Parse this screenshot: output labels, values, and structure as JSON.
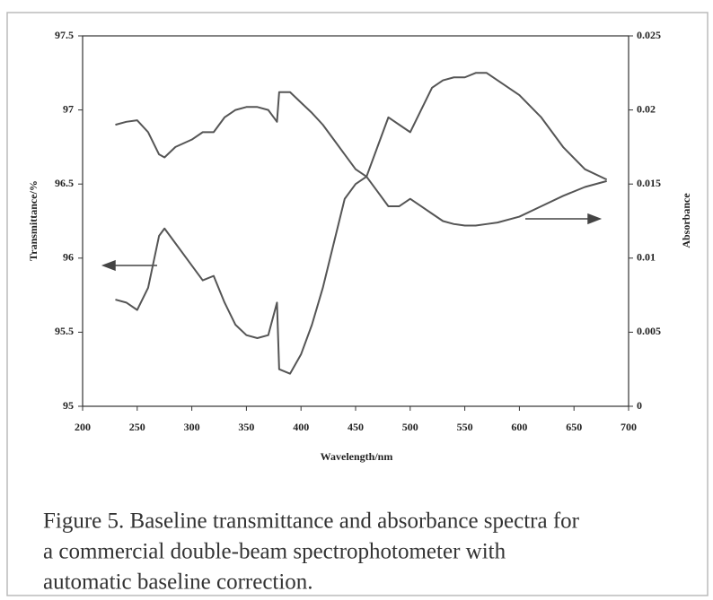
{
  "chart_data": {
    "type": "line",
    "x_label": "Wavelength/nm",
    "y_label": "Transmittance/%",
    "y2_label": "Absorbance",
    "caption": [
      "Figure 5. Baseline transmittance and absorbance spectra for",
      "a commercial double-beam spectrophotometer with",
      "automatic baseline correction."
    ],
    "xlim": [
      200,
      700
    ],
    "xticks": [
      200,
      250,
      300,
      350,
      400,
      450,
      500,
      550,
      600,
      650,
      700
    ],
    "ylim": [
      95,
      97.5
    ],
    "yticks": [
      95,
      95.5,
      96,
      96.5,
      97,
      97.5
    ],
    "y2lim": [
      0,
      0.025
    ],
    "y2ticks": [
      0,
      0.005,
      0.01,
      0.015,
      0.02,
      0.025
    ],
    "x": [
      230,
      240,
      250,
      260,
      270,
      275,
      285,
      300,
      310,
      320,
      330,
      340,
      350,
      360,
      370,
      378,
      380,
      390,
      400,
      410,
      420,
      430,
      440,
      450,
      460,
      470,
      480,
      490,
      500,
      510,
      520,
      530,
      540,
      550,
      560,
      570,
      580,
      600,
      620,
      640,
      660,
      680
    ],
    "series": [
      {
        "color": "#555555",
        "values": [
          95.72,
          95.7,
          95.65,
          95.8,
          96.15,
          96.2,
          96.1,
          95.95,
          95.85,
          95.88,
          95.7,
          95.55,
          95.48,
          95.46,
          95.48,
          95.7,
          95.25,
          95.22,
          95.35,
          95.55,
          95.8,
          96.1,
          96.4,
          96.5,
          96.55,
          96.75,
          96.95,
          96.9,
          96.85,
          97.0,
          97.15,
          97.2,
          97.22,
          97.22,
          97.25,
          97.25,
          97.2,
          97.1,
          96.95,
          96.75,
          96.6,
          96.53
        ]
      },
      {
        "color": "#555555",
        "axis": "y2",
        "values": [
          0.019,
          0.0192,
          0.0193,
          0.0185,
          0.017,
          0.0168,
          0.0175,
          0.018,
          0.0185,
          0.0185,
          0.0195,
          0.02,
          0.0202,
          0.0202,
          0.02,
          0.0192,
          0.0212,
          0.0212,
          0.0205,
          0.0198,
          0.019,
          0.018,
          0.017,
          0.016,
          0.0155,
          0.0145,
          0.0135,
          0.0135,
          0.014,
          0.0135,
          0.013,
          0.0125,
          0.0123,
          0.0122,
          0.0122,
          0.0123,
          0.0124,
          0.0128,
          0.0135,
          0.0142,
          0.0148,
          0.0152
        ]
      }
    ]
  }
}
